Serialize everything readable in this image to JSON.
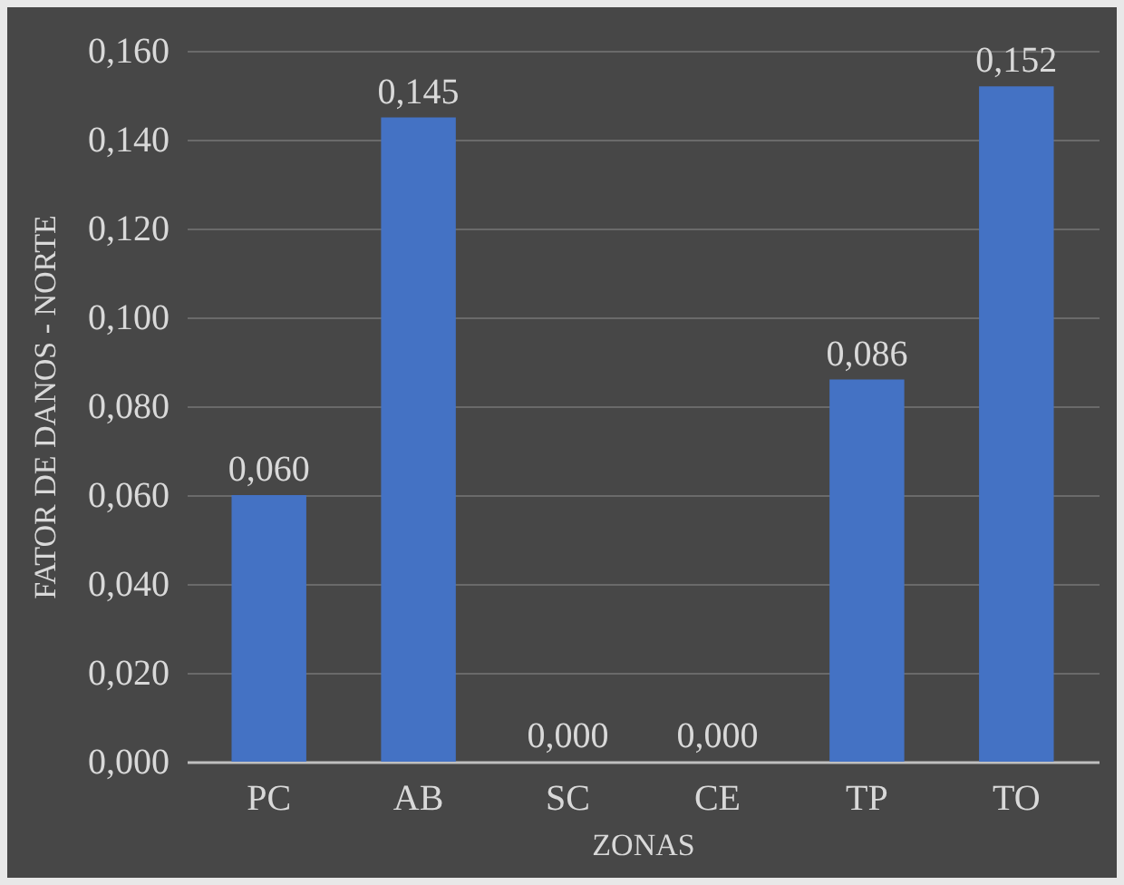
{
  "chart_data": {
    "type": "bar",
    "xlabel": "ZONAS",
    "ylabel": "FATOR DE DANOS - NORTE",
    "categories": [
      "PC",
      "AB",
      "SC",
      "CE",
      "TP",
      "TO"
    ],
    "values": [
      0.06,
      0.145,
      0.0,
      0.0,
      0.086,
      0.152
    ],
    "value_labels": [
      "0,060",
      "0,145",
      "0,000",
      "0,000",
      "0,086",
      "0,152"
    ],
    "color": "#4472c4",
    "ylim": [
      0,
      0.16
    ],
    "yticks": [
      {
        "value": 0,
        "label": "0,000"
      },
      {
        "value": 0.02,
        "label": "0,020"
      },
      {
        "value": 0.04,
        "label": "0,040"
      },
      {
        "value": 0.06,
        "label": "0,060"
      },
      {
        "value": 0.08,
        "label": "0,080"
      },
      {
        "value": 0.1,
        "label": "0,100"
      },
      {
        "value": 0.12,
        "label": "0,120"
      },
      {
        "value": 0.14,
        "label": "0,140"
      },
      {
        "value": 0.16,
        "label": "0,160"
      }
    ],
    "grid": "y"
  }
}
